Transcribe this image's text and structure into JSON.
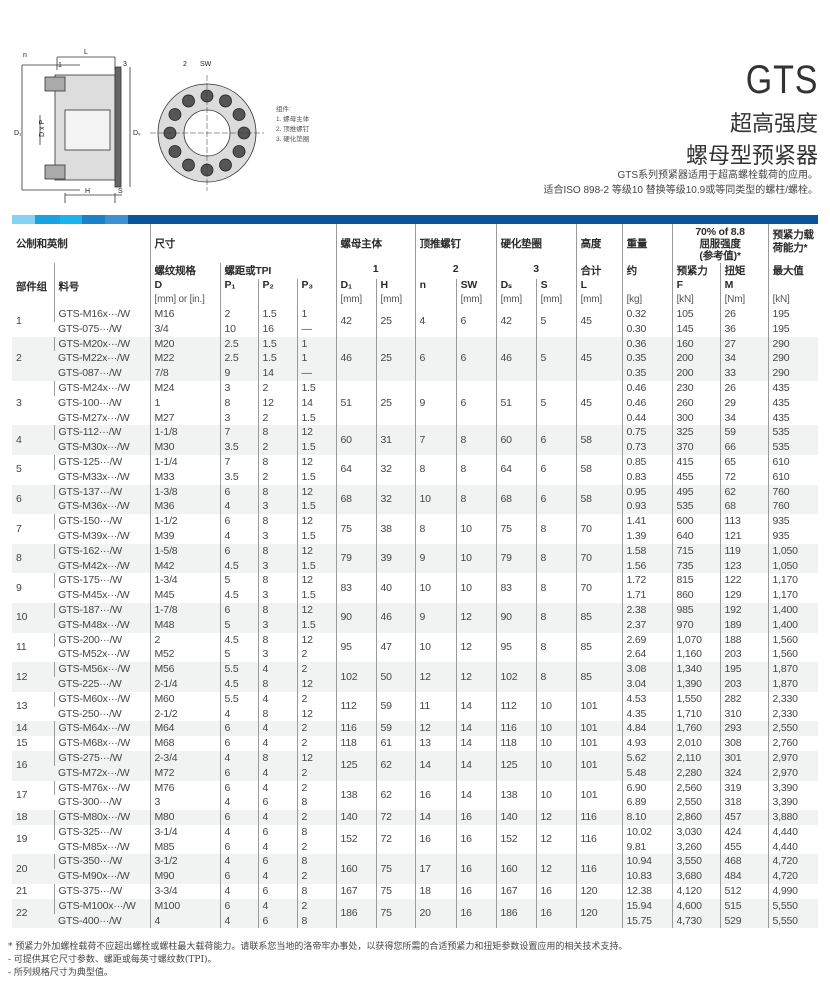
{
  "header": {
    "title": "GTS",
    "subtitle_1": "超高强度",
    "subtitle_2": "螺母型预紧器",
    "desc_1": "GTS系列预紧器适用于超高螺栓载荷的应用。",
    "desc_2": "适合ISO 898-2 等级10 替换等级10.9或等同类型的螺柱/螺栓。"
  },
  "diagram": {
    "labels": {
      "n": "n",
      "l": "L",
      "one": "1",
      "three": "3",
      "two": "2",
      "sw": "SW",
      "d1": "D₁",
      "dxp": "D x P",
      "ds": "Dₛ",
      "h": "H",
      "s": "S"
    },
    "legend": [
      "组件:",
      "1.  螺母主体",
      "2.  顶推螺钉",
      "3.  硬化垫圈"
    ]
  },
  "colors": {
    "band": [
      "#86d2f5",
      "#19a2e2",
      "#1bb3ee",
      "#1a80c7",
      "#3b90d1",
      "#0a5599"
    ],
    "row_alt": "#f1f3f3"
  },
  "table": {
    "head": {
      "r1": [
        "公制和英制",
        "尺寸",
        "螺母主体",
        "顶推螺钉",
        "硬化垫圈",
        "高度",
        "重量"
      ],
      "yield": [
        "70% of 8.8",
        "屈服强度",
        "(参考值)*"
      ],
      "capacity": [
        "预紧力载",
        "荷能力*"
      ],
      "r2": [
        "螺纹规格",
        "螺距或TPI",
        "1",
        "2",
        "3",
        "合计",
        "约",
        "预紧力",
        "扭矩",
        "最大值"
      ],
      "r3": [
        "部件组",
        "料号",
        "D",
        "P₁",
        "P₂",
        "P₃",
        "D₁",
        "H",
        "n",
        "SW",
        "Dₛ",
        "S",
        "L",
        "F",
        "M"
      ],
      "r4": [
        "[mm] or [in.]",
        "[mm]",
        "[mm]",
        "[mm]",
        "[mm]",
        "[mm]",
        "[mm]",
        "[kg]",
        "[kN]",
        "[Nm]",
        "[kN]"
      ]
    },
    "groups": [
      {
        "group": "1",
        "rows": [
          [
            "GTS-M16x···/W",
            "M16",
            "2",
            "1.5",
            "1",
            "0.32",
            "105",
            "26",
            "195"
          ],
          [
            "GTS-075···/W",
            "3/4",
            "10",
            "16",
            "—",
            "0.30",
            "145",
            "36",
            "195"
          ]
        ],
        "shared": [
          "42",
          "25",
          "4",
          "6",
          "42",
          "5",
          "45"
        ]
      },
      {
        "group": "2",
        "rows": [
          [
            "GTS-M20x···/W",
            "M20",
            "2.5",
            "1.5",
            "1",
            "0.36",
            "160",
            "27",
            "290"
          ],
          [
            "GTS-M22x···/W",
            "M22",
            "2.5",
            "1.5",
            "1",
            "0.35",
            "200",
            "34",
            "290"
          ],
          [
            "GTS-087···/W",
            "7/8",
            "9",
            "14",
            "—",
            "0.35",
            "200",
            "33",
            "290"
          ]
        ],
        "shared": [
          "46",
          "25",
          "6",
          "6",
          "46",
          "5",
          "45"
        ]
      },
      {
        "group": "3",
        "rows": [
          [
            "GTS-M24x···/W",
            "M24",
            "3",
            "2",
            "1.5",
            "0.46",
            "230",
            "26",
            "435"
          ],
          [
            "GTS-100···/W",
            "1",
            "8",
            "12",
            "14",
            "0.46",
            "260",
            "29",
            "435"
          ],
          [
            "GTS-M27x···/W",
            "M27",
            "3",
            "2",
            "1.5",
            "0.44",
            "300",
            "34",
            "435"
          ]
        ],
        "shared": [
          "51",
          "25",
          "9",
          "6",
          "51",
          "5",
          "45"
        ]
      },
      {
        "group": "4",
        "rows": [
          [
            "GTS-112···/W",
            "1-1/8",
            "7",
            "8",
            "12",
            "0.75",
            "325",
            "59",
            "535"
          ],
          [
            "GTS-M30x···/W",
            "M30",
            "3.5",
            "2",
            "1.5",
            "0.73",
            "370",
            "66",
            "535"
          ]
        ],
        "shared": [
          "60",
          "31",
          "7",
          "8",
          "60",
          "6",
          "58"
        ]
      },
      {
        "group": "5",
        "rows": [
          [
            "GTS-125···/W",
            "1-1/4",
            "7",
            "8",
            "12",
            "0.85",
            "415",
            "65",
            "610"
          ],
          [
            "GTS-M33x···/W",
            "M33",
            "3.5",
            "2",
            "1.5",
            "0.83",
            "455",
            "72",
            "610"
          ]
        ],
        "shared": [
          "64",
          "32",
          "8",
          "8",
          "64",
          "6",
          "58"
        ]
      },
      {
        "group": "6",
        "rows": [
          [
            "GTS-137···/W",
            "1-3/8",
            "6",
            "8",
            "12",
            "0.95",
            "495",
            "62",
            "760"
          ],
          [
            "GTS-M36x···/W",
            "M36",
            "4",
            "3",
            "1.5",
            "0.93",
            "535",
            "68",
            "760"
          ]
        ],
        "shared": [
          "68",
          "32",
          "10",
          "8",
          "68",
          "6",
          "58"
        ]
      },
      {
        "group": "7",
        "rows": [
          [
            "GTS-150···/W",
            "1-1/2",
            "6",
            "8",
            "12",
            "1.41",
            "600",
            "113",
            "935"
          ],
          [
            "GTS-M39x···/W",
            "M39",
            "4",
            "3",
            "1.5",
            "1.39",
            "640",
            "121",
            "935"
          ]
        ],
        "shared": [
          "75",
          "38",
          "8",
          "10",
          "75",
          "8",
          "70"
        ]
      },
      {
        "group": "8",
        "rows": [
          [
            "GTS-162···/W",
            "1-5/8",
            "6",
            "8",
            "12",
            "1.58",
            "715",
            "119",
            "1,050"
          ],
          [
            "GTS-M42x···/W",
            "M42",
            "4.5",
            "3",
            "1.5",
            "1.56",
            "735",
            "123",
            "1,050"
          ]
        ],
        "shared": [
          "79",
          "39",
          "9",
          "10",
          "79",
          "8",
          "70"
        ]
      },
      {
        "group": "9",
        "rows": [
          [
            "GTS-175···/W",
            "1-3/4",
            "5",
            "8",
            "12",
            "1.72",
            "815",
            "122",
            "1,170"
          ],
          [
            "GTS-M45x···/W",
            "M45",
            "4.5",
            "3",
            "1.5",
            "1.71",
            "860",
            "129",
            "1,170"
          ]
        ],
        "shared": [
          "83",
          "40",
          "10",
          "10",
          "83",
          "8",
          "70"
        ]
      },
      {
        "group": "10",
        "rows": [
          [
            "GTS-187···/W",
            "1-7/8",
            "6",
            "8",
            "12",
            "2.38",
            "985",
            "192",
            "1,400"
          ],
          [
            "GTS-M48x···/W",
            "M48",
            "5",
            "3",
            "1.5",
            "2.37",
            "970",
            "189",
            "1,400"
          ]
        ],
        "shared": [
          "90",
          "46",
          "9",
          "12",
          "90",
          "8",
          "85"
        ]
      },
      {
        "group": "11",
        "rows": [
          [
            "GTS-200···/W",
            "2",
            "4.5",
            "8",
            "12",
            "2.69",
            "1,070",
            "188",
            "1,560"
          ],
          [
            "GTS-M52x···/W",
            "M52",
            "5",
            "3",
            "2",
            "2.64",
            "1,160",
            "203",
            "1,560"
          ]
        ],
        "shared": [
          "95",
          "47",
          "10",
          "12",
          "95",
          "8",
          "85"
        ]
      },
      {
        "group": "12",
        "rows": [
          [
            "GTS-M56x···/W",
            "M56",
            "5.5",
            "4",
            "2",
            "3.08",
            "1,340",
            "195",
            "1,870"
          ],
          [
            "GTS-225···/W",
            "2-1/4",
            "4.5",
            "8",
            "12",
            "3.04",
            "1,390",
            "203",
            "1,870"
          ]
        ],
        "shared": [
          "102",
          "50",
          "12",
          "12",
          "102",
          "8",
          "85"
        ]
      },
      {
        "group": "13",
        "rows": [
          [
            "GTS-M60x···/W",
            "M60",
            "5.5",
            "4",
            "2",
            "4.53",
            "1,550",
            "282",
            "2,330"
          ],
          [
            "GTS-250···/W",
            "2-1/2",
            "4",
            "8",
            "12",
            "4.35",
            "1,710",
            "310",
            "2,330"
          ]
        ],
        "shared": [
          "112",
          "59",
          "11",
          "14",
          "112",
          "10",
          "101"
        ]
      },
      {
        "group": "14",
        "rows": [
          [
            "GTS-M64x···/W",
            "M64",
            "6",
            "4",
            "2",
            "4.84",
            "1,760",
            "293",
            "2,550"
          ]
        ],
        "shared": [
          "116",
          "59",
          "12",
          "14",
          "116",
          "10",
          "101"
        ]
      },
      {
        "group": "15",
        "rows": [
          [
            "GTS-M68x···/W",
            "M68",
            "6",
            "4",
            "2",
            "4.93",
            "2,010",
            "308",
            "2,760"
          ]
        ],
        "shared": [
          "118",
          "61",
          "13",
          "14",
          "118",
          "10",
          "101"
        ]
      },
      {
        "group": "16",
        "rows": [
          [
            "GTS-275···/W",
            "2-3/4",
            "4",
            "8",
            "12",
            "5.62",
            "2,110",
            "301",
            "2,970"
          ],
          [
            "GTS-M72x···/W",
            "M72",
            "6",
            "4",
            "2",
            "5.48",
            "2,280",
            "324",
            "2,970"
          ]
        ],
        "shared": [
          "125",
          "62",
          "14",
          "14",
          "125",
          "10",
          "101"
        ]
      },
      {
        "group": "17",
        "rows": [
          [
            "GTS-M76x···/W",
            "M76",
            "6",
            "4",
            "2",
            "6.90",
            "2,560",
            "319",
            "3,390"
          ],
          [
            "GTS-300···/W",
            "3",
            "4",
            "6",
            "8",
            "6.89",
            "2,550",
            "318",
            "3,390"
          ]
        ],
        "shared": [
          "138",
          "62",
          "16",
          "14",
          "138",
          "10",
          "101"
        ]
      },
      {
        "group": "18",
        "rows": [
          [
            "GTS-M80x···/W",
            "M80",
            "6",
            "4",
            "2",
            "8.10",
            "2,860",
            "457",
            "3,880"
          ]
        ],
        "shared": [
          "140",
          "72",
          "14",
          "16",
          "140",
          "12",
          "116"
        ]
      },
      {
        "group": "19",
        "rows": [
          [
            "GTS-325···/W",
            "3-1/4",
            "4",
            "6",
            "8",
            "10.02",
            "3,030",
            "424",
            "4,440"
          ],
          [
            "GTS-M85x···/W",
            "M85",
            "6",
            "4",
            "2",
            "9.81",
            "3,260",
            "455",
            "4,440"
          ]
        ],
        "shared": [
          "152",
          "72",
          "16",
          "16",
          "152",
          "12",
          "116"
        ]
      },
      {
        "group": "20",
        "rows": [
          [
            "GTS-350···/W",
            "3-1/2",
            "4",
            "6",
            "8",
            "10.94",
            "3,550",
            "468",
            "4,720"
          ],
          [
            "GTS-M90x···/W",
            "M90",
            "6",
            "4",
            "2",
            "10.83",
            "3,680",
            "484",
            "4,720"
          ]
        ],
        "shared": [
          "160",
          "75",
          "17",
          "16",
          "160",
          "12",
          "116"
        ]
      },
      {
        "group": "21",
        "rows": [
          [
            "GTS-375···/W",
            "3-3/4",
            "4",
            "6",
            "8",
            "12.38",
            "4,120",
            "512",
            "4,990"
          ]
        ],
        "shared": [
          "167",
          "75",
          "18",
          "16",
          "167",
          "16",
          "120"
        ]
      },
      {
        "group": "22",
        "rows": [
          [
            "GTS-M100x···/W",
            "M100",
            "6",
            "4",
            "2",
            "15.94",
            "4,600",
            "515",
            "5,550"
          ],
          [
            "GTS-400···/W",
            "4",
            "4",
            "6",
            "8",
            "15.75",
            "4,730",
            "529",
            "5,550"
          ]
        ],
        "shared": [
          "186",
          "75",
          "20",
          "16",
          "186",
          "16",
          "120"
        ]
      }
    ]
  },
  "footnotes": [
    "* 预紧力外加螺栓载荷不应超出螺栓或螺柱最大载荷能力。请联系您当地的洛帝牢办事处，以获得您所需的合适预紧力和扭矩参数设置应用的相关技术支持。",
    "- 可提供其它尺寸参数、螺距或每英寸螺纹数(TPI)。",
    "- 所列规格尺寸为典型值。"
  ]
}
